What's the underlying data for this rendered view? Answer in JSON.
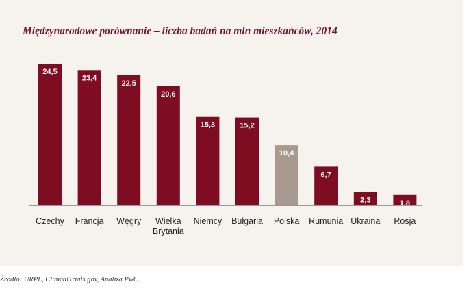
{
  "colors": {
    "bar": "#7e0d22",
    "bar_highlight": "#a89a90",
    "axis": "#9a9a9a"
  },
  "title": "Międzynarodowe porównanie – liczba badań na mln mieszkańców, 2014",
  "source": "Źródło: URPL, ClinicalTrials.gov, Analiza PwC",
  "chart_data": {
    "type": "bar",
    "title": "Międzynarodowe porównanie – liczba badań na mln mieszkańców, 2014",
    "categories": [
      "Czechy",
      "Francja",
      "Węgry",
      "Wielka\nBrytania",
      "Niemcy",
      "Bułgaria",
      "Polska",
      "Rumunia",
      "Ukraina",
      "Rosja"
    ],
    "values": [
      24.5,
      23.4,
      22.5,
      20.6,
      15.3,
      15.2,
      10.4,
      6.7,
      2.3,
      1.8
    ],
    "value_labels": [
      "24,5",
      "23,4",
      "22,5",
      "20,6",
      "15,3",
      "15,2",
      "10,4",
      "6,7",
      "2,3",
      "1,8"
    ],
    "highlight": "Polska",
    "xlabel": "",
    "ylabel": "",
    "ylim": [
      0,
      25
    ],
    "grid": false,
    "legend": "none"
  }
}
